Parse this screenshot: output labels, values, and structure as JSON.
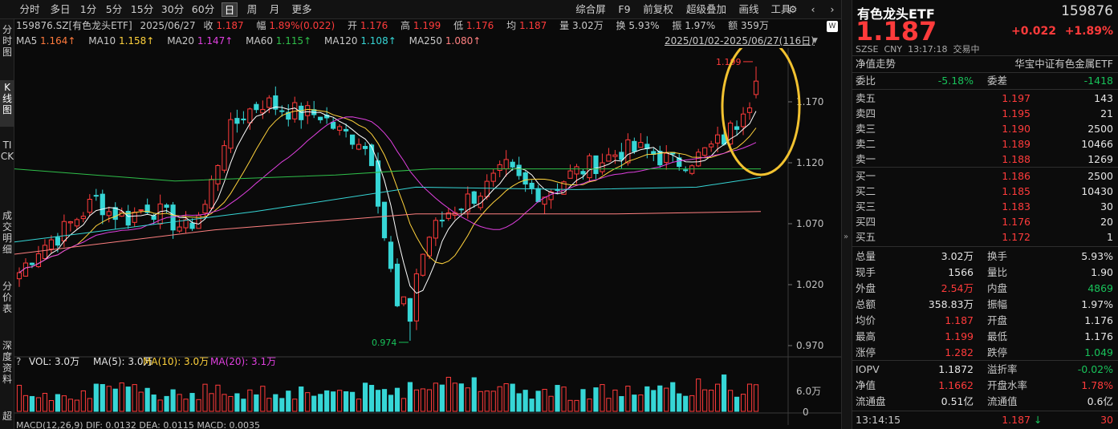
{
  "toolbar": {
    "left": [
      "分时",
      "多日",
      "1分",
      "5分",
      "15分",
      "30分",
      "60分",
      "日",
      "周",
      "月",
      "更多"
    ],
    "active": "日",
    "right": [
      "综合屏",
      "F9",
      "前复权",
      "超级叠加",
      "画线",
      "工具"
    ]
  },
  "vtabs": [
    {
      "label": "分时图"
    },
    {
      "label": "K线图"
    },
    {
      "label": "TICK"
    },
    {
      "label": "成交明细"
    },
    {
      "label": "分价表"
    },
    {
      "label": "深度资料"
    },
    {
      "label": "超"
    }
  ],
  "info1": {
    "code": "159876.SZ[有色龙头ETF]",
    "date": "2025/06/27",
    "close_label": "收",
    "close": "1.187",
    "amp_label": "幅",
    "amp": "1.89%(0.022)",
    "open_label": "开",
    "open": "1.176",
    "high_label": "高",
    "high": "1.199",
    "low_label": "低",
    "low": "1.176",
    "avg_label": "均",
    "avg": "1.187",
    "vol_label": "量",
    "vol": "3.02万",
    "turn_label": "换",
    "turn": "5.93%",
    "zhen_label": "振",
    "zhen": "1.97%",
    "amt_label": "额",
    "amt": "359万"
  },
  "info2": {
    "ma5": "MA5",
    "ma5v": "1.164↑",
    "ma10": "MA10",
    "ma10v": "1.158↑",
    "ma20": "MA20",
    "ma20v": "1.147↑",
    "ma60": "MA60",
    "ma60v": "1.115↑",
    "ma120": "MA120",
    "ma120v": "1.108↑",
    "ma250": "MA250",
    "ma250v": "1.080↑",
    "range": "2025/01/02-2025/06/27(116日)"
  },
  "vol_info": {
    "q": "?",
    "vol": "VOL: 3.0万",
    "ma5": "MA(5): 3.0万",
    "ma10": "MA(10): 3.0万",
    "ma20": "MA(20): 3.1万"
  },
  "macd_info": "MACD(12,26,9)  DIF: 0.0132  DEA: 0.0115  MACD: 0.0035",
  "chart_data": {
    "type": "candlestick",
    "price_axis_ticks": [
      "1.170",
      "1.120",
      "1.070",
      "1.020",
      "0.970"
    ],
    "price_tick_values": [
      1.17,
      1.12,
      1.07,
      1.02,
      0.97
    ],
    "volume_axis_ticks": [
      "6.0万",
      "0"
    ],
    "max_label": "1.199",
    "min_label": "0.974",
    "annotation": "yellow ellipse around latest candles"
  },
  "right": {
    "name": "有色龙头ETF",
    "code": "159876",
    "price": "1.187",
    "change": "+0.022",
    "change_pct": "+1.89%",
    "sub": [
      "SZSE",
      "CNY",
      "13:17:18",
      "交易中"
    ],
    "nav_label": "净值走势",
    "index_name": "华宝中证有色金属ETF",
    "weibi_label": "委比",
    "weibi": "-5.18%",
    "weicha_label": "委差",
    "weicha": "-1418",
    "asks": [
      {
        "label": "卖五",
        "price": "1.197",
        "vol": "143"
      },
      {
        "label": "卖四",
        "price": "1.195",
        "vol": "21"
      },
      {
        "label": "卖三",
        "price": "1.190",
        "vol": "2500"
      },
      {
        "label": "卖二",
        "price": "1.189",
        "vol": "10466"
      },
      {
        "label": "卖一",
        "price": "1.188",
        "vol": "1269"
      }
    ],
    "bids": [
      {
        "label": "买一",
        "price": "1.186",
        "vol": "2500"
      },
      {
        "label": "买二",
        "price": "1.185",
        "vol": "10430"
      },
      {
        "label": "买三",
        "price": "1.183",
        "vol": "30"
      },
      {
        "label": "买四",
        "price": "1.176",
        "vol": "20"
      },
      {
        "label": "买五",
        "price": "1.172",
        "vol": "1"
      }
    ],
    "stats": [
      {
        "a": "总量",
        "b": "3.02万",
        "bc": "white",
        "c": "换手",
        "d": "5.93%",
        "dc": "white"
      },
      {
        "a": "现手",
        "b": "1566",
        "bc": "white",
        "c": "量比",
        "d": "1.90",
        "dc": "white"
      },
      {
        "a": "外盘",
        "b": "2.54万",
        "bc": "red",
        "c": "内盘",
        "d": "4869",
        "dc": "green"
      },
      {
        "a": "总额",
        "b": "358.83万",
        "bc": "white",
        "c": "振幅",
        "d": "1.97%",
        "dc": "white"
      },
      {
        "a": "均价",
        "b": "1.187",
        "bc": "red",
        "c": "开盘",
        "d": "1.176",
        "dc": "white"
      },
      {
        "a": "最高",
        "b": "1.199",
        "bc": "red",
        "c": "最低",
        "d": "1.176",
        "dc": "white"
      },
      {
        "a": "涨停",
        "b": "1.282",
        "bc": "red",
        "c": "跌停",
        "d": "1.049",
        "dc": "green"
      }
    ],
    "stats2": [
      {
        "a": "IOPV",
        "b": "1.1872",
        "bc": "white",
        "c": "溢折率",
        "d": "-0.02%",
        "dc": "green"
      },
      {
        "a": "净值",
        "b": "1.1662",
        "bc": "red",
        "c": "开盘水率",
        "d": "1.78%",
        "dc": "red"
      },
      {
        "a": "流通盘",
        "b": "0.51亿",
        "bc": "white",
        "c": "流通值",
        "d": "0.6亿",
        "dc": "white"
      }
    ],
    "tick": {
      "time": "13:14:15",
      "price": "1.187",
      "arrow": "↓",
      "vol": "30"
    }
  }
}
